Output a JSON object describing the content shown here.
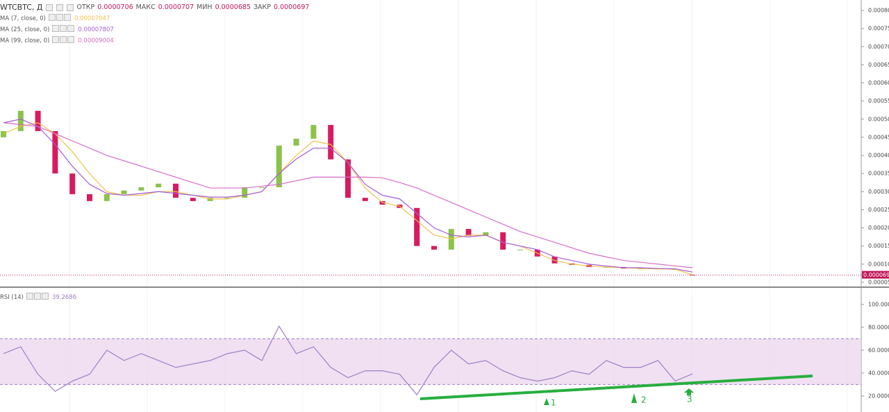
{
  "header": {
    "symbol": "WTCBTC, Д",
    "ohlc": [
      {
        "label": "ОТКР",
        "value": "0.0000706"
      },
      {
        "label": "МАКС",
        "value": "0.0000707"
      },
      {
        "label": "МИН",
        "value": "0.0000685"
      },
      {
        "label": "ЗАКР",
        "value": "0.0000697"
      }
    ]
  },
  "annotations": [
    "1",
    "2",
    "3"
  ],
  "chart_data": [
    {
      "type": "candlestick",
      "up_color": "#8bc34a",
      "down_color": "#d81b60",
      "categories": [
        null,
        null,
        null,
        null,
        null,
        null,
        null,
        null,
        null,
        null,
        null,
        null,
        null,
        null,
        null,
        null,
        null,
        null,
        null,
        null,
        null,
        null,
        null,
        null,
        null,
        null,
        null,
        null,
        null,
        null,
        null,
        null,
        null,
        null,
        null,
        null,
        null,
        null,
        null,
        null,
        null
      ],
      "open": [
        0.00045,
        0.000467,
        0.000523,
        0.000467,
        0.00035,
        0.000293,
        0.000274,
        0.000293,
        0.000303,
        0.000312,
        0.000322,
        0.000283,
        0.000274,
        0.000283,
        0.000283,
        0.000312,
        0.000312,
        0.000427,
        0.000446,
        0.000484,
        0.000389,
        0.000283,
        0.000274,
        0.000264,
        0.000255,
        0.00015,
        0.00014,
        0.000197,
        0.000178,
        0.000188,
        0.00014,
        0.00014,
        0.000121,
        0.000102,
        9.8e-05,
        9.2e-05,
        9.2e-05,
        8.8e-05,
        8.8e-05,
        8.6e-05,
        7.06e-05
      ],
      "close": [
        0.000467,
        0.000523,
        0.000467,
        0.00035,
        0.000293,
        0.000274,
        0.000293,
        0.000303,
        0.000312,
        0.000322,
        0.000283,
        0.000274,
        0.000283,
        0.000283,
        0.000312,
        0.000312,
        0.000427,
        0.000446,
        0.000484,
        0.000389,
        0.000283,
        0.000274,
        0.000264,
        0.000255,
        0.00015,
        0.00014,
        0.000197,
        0.000178,
        0.000188,
        0.00014,
        0.00014,
        0.000121,
        0.000102,
        9.8e-05,
        9.2e-05,
        9.2e-05,
        8.8e-05,
        8.8e-05,
        8.6e-05,
        8.6e-05,
        6.97e-05
      ],
      "series": [
        {
          "name": "MA (7, close, 0)",
          "color": "#f0c24a",
          "legend_value": "0.00007047",
          "values": [
            0.00046,
            0.00048,
            0.00049,
            0.00046,
            0.00041,
            0.00035,
            0.0003,
            0.00029,
            0.00029,
            0.0003,
            0.0003,
            0.00029,
            0.00028,
            0.00028,
            0.00029,
            0.0003,
            0.00035,
            0.0004,
            0.00044,
            0.00043,
            0.00038,
            0.00031,
            0.00027,
            0.00026,
            0.00022,
            0.00018,
            0.00017,
            0.00018,
            0.00018,
            0.00016,
            0.00015,
            0.00013,
            0.00011,
            0.0001,
            9.5e-05,
            9.2e-05,
            9e-05,
            8.8e-05,
            8.7e-05,
            8.6e-05,
            7.047e-05
          ]
        },
        {
          "name": "MA (25, close, 0)",
          "color": "#a55cd6",
          "legend_value": "0.00007807",
          "values": [
            0.00049,
            0.0005,
            0.00048,
            0.00043,
            0.00037,
            0.00032,
            0.000295,
            0.00029,
            0.000295,
            0.0003,
            0.000295,
            0.00029,
            0.000285,
            0.000285,
            0.00029,
            0.0003,
            0.00035,
            0.00039,
            0.00042,
            0.00042,
            0.00038,
            0.00032,
            0.00029,
            0.00028,
            0.00024,
            0.0002,
            0.00018,
            0.000175,
            0.00018,
            0.00016,
            0.00015,
            0.00014,
            0.00012,
            0.00011,
            0.0001,
            9.5e-05,
            9e-05,
            9e-05,
            8.8e-05,
            8.7e-05,
            7.807e-05
          ]
        },
        {
          "name": "MA (99, close, 0)",
          "color": "#d66cc8",
          "legend_value": "0.00009004",
          "values": [
            0.00049,
            0.000485,
            0.00048,
            0.00046,
            0.00044,
            0.00042,
            0.0004,
            0.000385,
            0.00037,
            0.000355,
            0.00034,
            0.000325,
            0.00031,
            0.00031,
            0.00031,
            0.000315,
            0.00032,
            0.00033,
            0.00034,
            0.00034,
            0.00034,
            0.00034,
            0.000338,
            0.000325,
            0.00031,
            0.00029,
            0.00027,
            0.00025,
            0.00023,
            0.00021,
            0.00019,
            0.000175,
            0.00016,
            0.000145,
            0.00013,
            0.00012,
            0.00011,
            0.000105,
            0.0001,
            9.5e-05,
            9.004e-05
          ]
        }
      ],
      "ylim": [
        4.03e-05,
        0.0008287
      ],
      "yticks": [
        {
          "value": 5e-05,
          "label": "0.000050"
        },
        {
          "value": 0.0001,
          "label": "0.000100"
        },
        {
          "value": 0.00015,
          "label": "0.000150"
        },
        {
          "value": 0.0002,
          "label": "0.000200"
        },
        {
          "value": 0.00025,
          "label": "0.000250"
        },
        {
          "value": 0.0003,
          "label": "0.000300"
        },
        {
          "value": 0.00035,
          "label": "0.000350"
        },
        {
          "value": 0.0004,
          "label": "0.000400"
        },
        {
          "value": 0.00045,
          "label": "0.000450"
        },
        {
          "value": 0.0005,
          "label": "0.000500"
        },
        {
          "value": 0.00055,
          "label": "0.000550"
        },
        {
          "value": 0.0006,
          "label": "0.000600"
        },
        {
          "value": 0.00065,
          "label": "0.000650"
        },
        {
          "value": 0.0007,
          "label": "0.000700"
        },
        {
          "value": 0.00075,
          "label": "0.000750"
        },
        {
          "value": 0.0008,
          "label": "0.000800"
        }
      ]
    },
    {
      "type": "line",
      "band": [
        30,
        70
      ],
      "band_color": "#e9d3ec",
      "series": [
        {
          "name": "RSI (14)",
          "color": "#a07cc5",
          "legend_value": "39.2686",
          "values": [
            57,
            63,
            39,
            24,
            33,
            39,
            60,
            51,
            57,
            51,
            45,
            48,
            51,
            57,
            60,
            51,
            81,
            57,
            63,
            45,
            36,
            42,
            42,
            39,
            21,
            45,
            60,
            48,
            51,
            42,
            36,
            33,
            36,
            42,
            39,
            51,
            45,
            45,
            51,
            33,
            39.2686
          ]
        }
      ],
      "ylim": [
        6,
        114.5
      ],
      "yticks": [
        {
          "value": 20,
          "label": "20.0000"
        },
        {
          "value": 40,
          "label": "40.0000"
        },
        {
          "value": 60,
          "label": "60.0000"
        },
        {
          "value": 80,
          "label": "80.0000"
        },
        {
          "value": 100,
          "label": "100.0000"
        }
      ]
    }
  ]
}
